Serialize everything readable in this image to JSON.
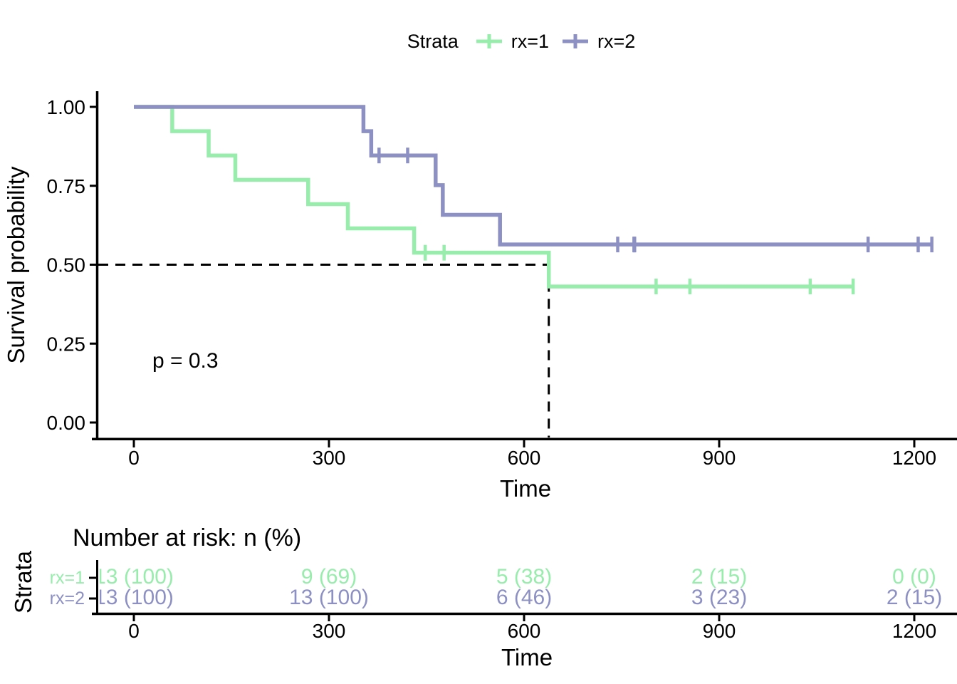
{
  "legend": {
    "title": "Strata",
    "items": [
      {
        "label": "rx=1",
        "color": "#98EDAD"
      },
      {
        "label": "rx=2",
        "color": "#8D90C3"
      }
    ]
  },
  "chart_data": {
    "type": "line",
    "subtype": "kaplan-meier-step",
    "title": "",
    "xlabel": "Time",
    "ylabel": "Survival probability",
    "xlim": [
      0,
      1265
    ],
    "ylim": [
      0,
      1
    ],
    "grid": "off",
    "legend_position": "top",
    "pvalue_label": "p = 0.3",
    "x_ticks": [
      {
        "v": 0,
        "label": "0"
      },
      {
        "v": 300,
        "label": "300"
      },
      {
        "v": 600,
        "label": "600"
      },
      {
        "v": 900,
        "label": "900"
      },
      {
        "v": 1200,
        "label": "1200"
      }
    ],
    "y_ticks": [
      {
        "v": 0.0,
        "label": "0.00"
      },
      {
        "v": 0.25,
        "label": "0.25"
      },
      {
        "v": 0.5,
        "label": "0.50"
      },
      {
        "v": 0.75,
        "label": "0.75"
      },
      {
        "v": 1.0,
        "label": "1.00"
      }
    ],
    "median": {
      "time": 638,
      "survival": 0.5
    },
    "series": [
      {
        "name": "rx=1",
        "color": "#98EDAD",
        "steps": [
          [
            0,
            1.0
          ],
          [
            59,
            0.923
          ],
          [
            115,
            0.846
          ],
          [
            156,
            0.769
          ],
          [
            268,
            0.692
          ],
          [
            329,
            0.615
          ],
          [
            431,
            0.538
          ],
          [
            638,
            0.431
          ]
        ],
        "end_time": 1106,
        "censored": [
          [
            448,
            0.538
          ],
          [
            477,
            0.538
          ],
          [
            803,
            0.431
          ],
          [
            855,
            0.431
          ],
          [
            1040,
            0.431
          ],
          [
            1106,
            0.431
          ]
        ]
      },
      {
        "name": "rx=2",
        "color": "#8D90C3",
        "steps": [
          [
            0,
            1.0
          ],
          [
            353,
            0.923
          ],
          [
            365,
            0.846
          ],
          [
            464,
            0.752
          ],
          [
            475,
            0.658
          ],
          [
            563,
            0.564
          ]
        ],
        "end_time": 1227,
        "censored": [
          [
            377,
            0.846
          ],
          [
            421,
            0.846
          ],
          [
            744,
            0.564
          ],
          [
            769,
            0.564
          ],
          [
            770,
            0.564
          ],
          [
            1129,
            0.564
          ],
          [
            1206,
            0.564
          ],
          [
            1227,
            0.564
          ]
        ]
      }
    ]
  },
  "risk_table": {
    "title": "Number at risk: n (%)",
    "axis_title": "Strata",
    "xlabel": "Time",
    "times": [
      0,
      300,
      600,
      900,
      1200
    ],
    "rows": [
      {
        "label": "rx=1",
        "color": "#98EDAD",
        "values": [
          "13 (100)",
          "9 (69)",
          "5 (38)",
          "2 (15)",
          "0 (0)"
        ]
      },
      {
        "label": "rx=2",
        "color": "#8D90C3",
        "values": [
          "13 (100)",
          "13 (100)",
          "6 (46)",
          "3 (23)",
          "2 (15)"
        ]
      }
    ]
  },
  "colors": {
    "axis": "#000000",
    "median_line": "#000000",
    "background": "#ffffff"
  }
}
